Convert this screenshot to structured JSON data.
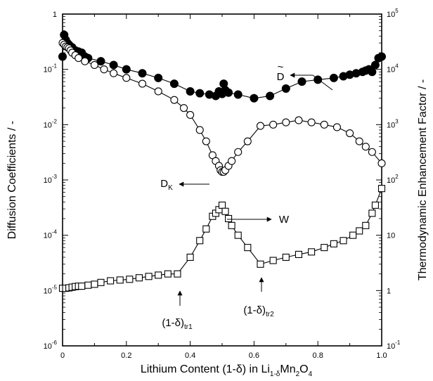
{
  "chart_data": {
    "type": "scatter",
    "xlabel_parts": {
      "main": "Lithium Content (1-δ) in Li",
      "sub1": "1-δ",
      "mid": "Mn",
      "sub2": "2",
      "mid2": "O",
      "sub3": "4"
    },
    "ylabel": "Diffusion Coefficients / -",
    "y2label": "Thermodynamic Enhancement Factor / -",
    "xlim": [
      0,
      1.0
    ],
    "ylim": [
      1e-06,
      1
    ],
    "y2lim": [
      0.1,
      100000
    ],
    "yscale": "log",
    "y2scale": "log",
    "grid": false,
    "x_ticks": [
      "0",
      "0.2",
      "0.4",
      "0.6",
      "0.8",
      "1.0"
    ],
    "x_tick_values": [
      0,
      0.2,
      0.4,
      0.6,
      0.8,
      1.0
    ],
    "y_ticks": [
      {
        "value": 1,
        "base": "1",
        "exp": ""
      },
      {
        "value": 0.1,
        "base": "10",
        "exp": "-1"
      },
      {
        "value": 0.01,
        "base": "10",
        "exp": "-2"
      },
      {
        "value": 0.001,
        "base": "10",
        "exp": "-3"
      },
      {
        "value": 0.0001,
        "base": "10",
        "exp": "-4"
      },
      {
        "value": 1e-05,
        "base": "10",
        "exp": "-5"
      },
      {
        "value": 1e-06,
        "base": "10",
        "exp": "-6"
      }
    ],
    "y2_ticks": [
      {
        "value": 100000,
        "base": "10",
        "exp": "5"
      },
      {
        "value": 10000,
        "base": "10",
        "exp": "4"
      },
      {
        "value": 1000,
        "base": "10",
        "exp": "3"
      },
      {
        "value": 100,
        "base": "10",
        "exp": "2"
      },
      {
        "value": 10,
        "base": "10",
        "exp": ""
      },
      {
        "value": 1,
        "base": "1",
        "exp": ""
      },
      {
        "value": 0.1,
        "base": "10",
        "exp": "-1"
      }
    ],
    "series": [
      {
        "label": "D̃",
        "marker": "filled-circle",
        "axis": "left",
        "x": [
          0.0,
          0.005,
          0.01,
          0.015,
          0.02,
          0.025,
          0.03,
          0.04,
          0.05,
          0.06,
          0.07,
          0.08,
          0.12,
          0.16,
          0.2,
          0.25,
          0.3,
          0.35,
          0.4,
          0.43,
          0.46,
          0.48,
          0.49,
          0.5,
          0.505,
          0.51,
          0.52,
          0.55,
          0.6,
          0.65,
          0.7,
          0.75,
          0.8,
          0.85,
          0.88,
          0.9,
          0.92,
          0.94,
          0.95,
          0.96,
          0.97,
          0.98,
          0.99,
          1.0
        ],
        "y": [
          0.17,
          0.42,
          0.34,
          0.3,
          0.28,
          0.26,
          0.25,
          0.22,
          0.21,
          0.2,
          0.17,
          0.16,
          0.14,
          0.12,
          0.1,
          0.085,
          0.07,
          0.055,
          0.04,
          0.037,
          0.035,
          0.033,
          0.04,
          0.036,
          0.055,
          0.042,
          0.038,
          0.035,
          0.03,
          0.033,
          0.045,
          0.06,
          0.065,
          0.07,
          0.075,
          0.08,
          0.085,
          0.09,
          0.095,
          0.1,
          0.09,
          0.12,
          0.16,
          0.17
        ]
      },
      {
        "label": "D",
        "label_sub": "K",
        "marker": "open-circle",
        "axis": "left",
        "x": [
          0.0,
          0.005,
          0.01,
          0.015,
          0.02,
          0.025,
          0.03,
          0.04,
          0.05,
          0.07,
          0.1,
          0.13,
          0.16,
          0.2,
          0.25,
          0.3,
          0.35,
          0.38,
          0.4,
          0.43,
          0.45,
          0.47,
          0.48,
          0.49,
          0.495,
          0.5,
          0.505,
          0.51,
          0.52,
          0.53,
          0.55,
          0.58,
          0.62,
          0.66,
          0.7,
          0.74,
          0.78,
          0.82,
          0.86,
          0.9,
          0.93,
          0.95,
          0.97,
          1.0
        ],
        "y": [
          0.3,
          0.28,
          0.26,
          0.25,
          0.24,
          0.22,
          0.2,
          0.18,
          0.16,
          0.14,
          0.12,
          0.1,
          0.085,
          0.07,
          0.055,
          0.04,
          0.028,
          0.02,
          0.015,
          0.008,
          0.005,
          0.0028,
          0.0022,
          0.0018,
          0.0015,
          0.0014,
          0.0014,
          0.0015,
          0.0018,
          0.0022,
          0.0032,
          0.005,
          0.0095,
          0.01,
          0.011,
          0.012,
          0.011,
          0.01,
          0.009,
          0.007,
          0.005,
          0.004,
          0.0032,
          0.002
        ]
      },
      {
        "label": "W",
        "marker": "open-square",
        "axis": "right",
        "x": [
          0.0,
          0.01,
          0.02,
          0.03,
          0.04,
          0.05,
          0.06,
          0.08,
          0.1,
          0.12,
          0.15,
          0.18,
          0.21,
          0.24,
          0.27,
          0.3,
          0.33,
          0.36,
          0.4,
          0.43,
          0.45,
          0.47,
          0.48,
          0.49,
          0.5,
          0.51,
          0.52,
          0.53,
          0.55,
          0.58,
          0.62,
          0.66,
          0.7,
          0.74,
          0.78,
          0.82,
          0.85,
          0.88,
          0.91,
          0.93,
          0.95,
          0.97,
          0.98,
          1.0
        ],
        "y": [
          1.1,
          1.1,
          1.12,
          1.15,
          1.18,
          1.2,
          1.2,
          1.25,
          1.3,
          1.4,
          1.5,
          1.55,
          1.6,
          1.7,
          1.8,
          1.9,
          2.0,
          2.0,
          4.0,
          8.0,
          13.0,
          22.0,
          25.0,
          29.0,
          35.0,
          27.0,
          20.0,
          15.0,
          10.0,
          6.0,
          3.0,
          3.5,
          4.0,
          4.5,
          5.0,
          6.0,
          7.0,
          8.0,
          10.0,
          12.0,
          15.0,
          25.0,
          35.0,
          70.0
        ]
      }
    ],
    "annotations": [
      {
        "id": "dtilde",
        "text": "D",
        "tilde": "~",
        "arrow": "left"
      },
      {
        "id": "dk",
        "text": "D",
        "sub": "K",
        "arrow": "right"
      },
      {
        "id": "w",
        "text": "W",
        "arrow": "right"
      },
      {
        "id": "tr1",
        "text": "(1-δ)",
        "sub": "tr1",
        "arrow": "up"
      },
      {
        "id": "tr2",
        "text": "(1-δ)",
        "sub": "tr2",
        "arrow": "up"
      }
    ]
  }
}
